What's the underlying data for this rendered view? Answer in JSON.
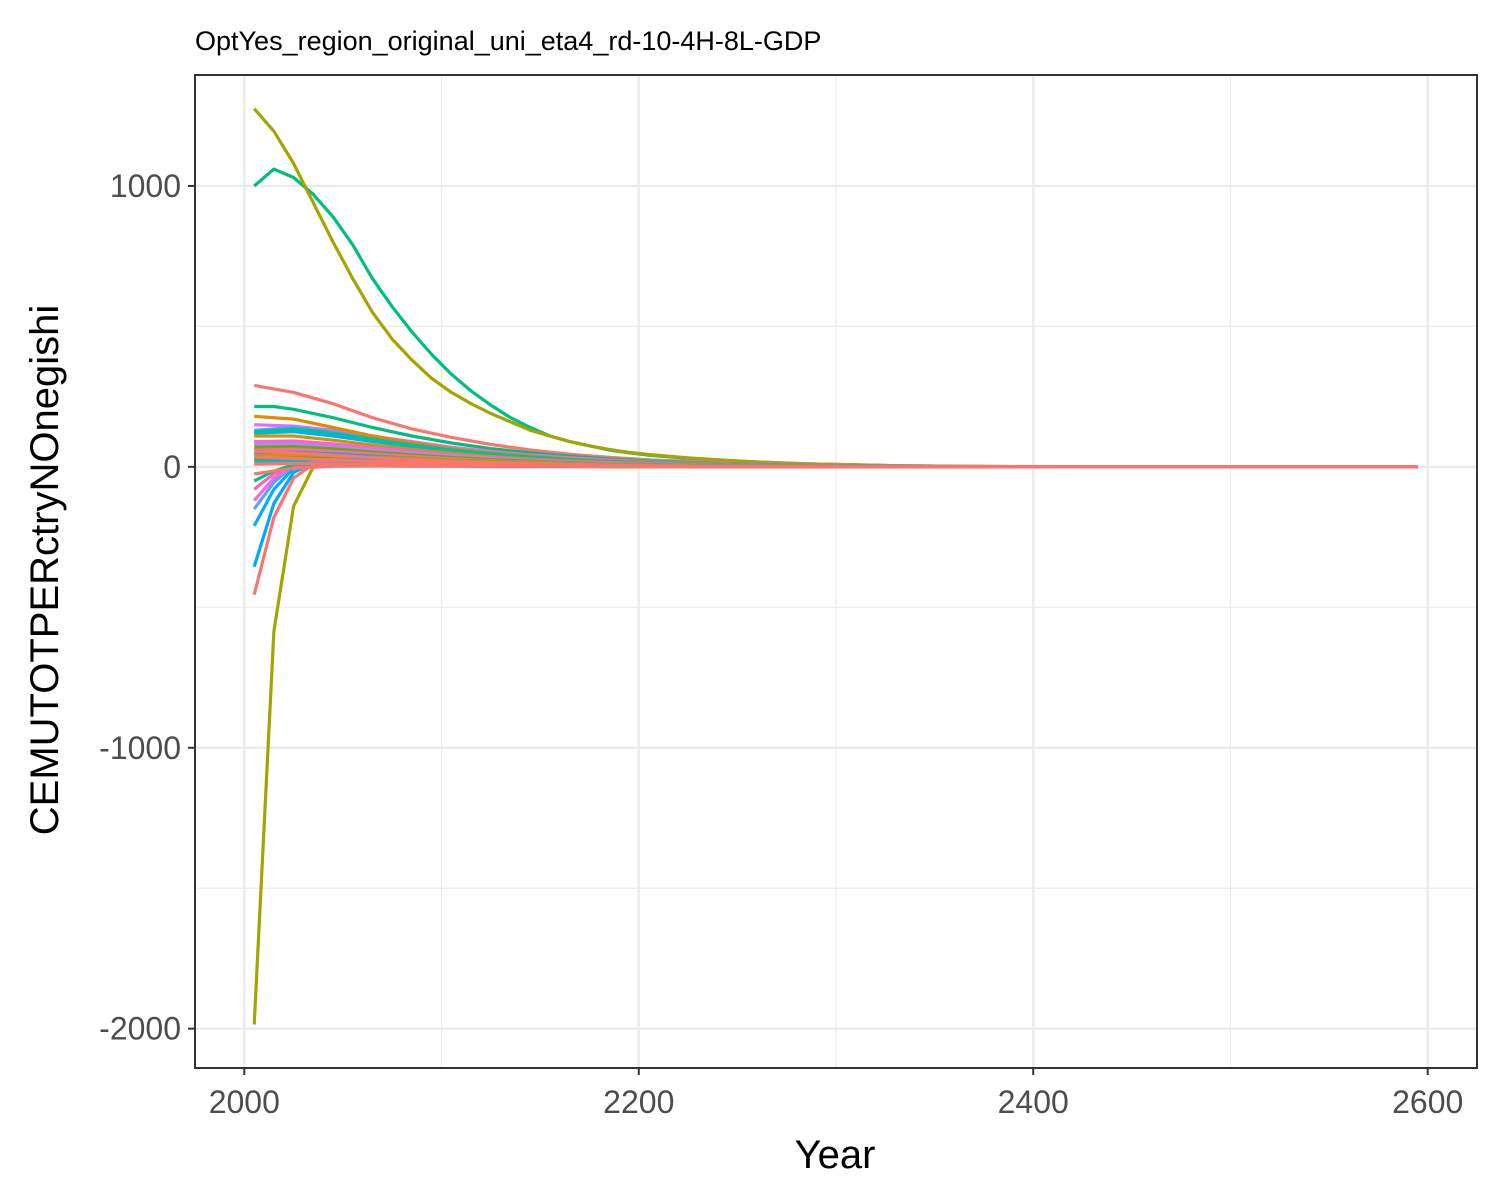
{
  "chart_data": {
    "type": "line",
    "title": "OptYes_region_original_uni_eta4_rd-10-4H-8L-GDP",
    "xlabel": "Year",
    "ylabel": "CEMUTOTPERctryNOnegishi",
    "xlim": [
      1975,
      2625
    ],
    "ylim": [
      -2140,
      1395
    ],
    "x_ticks": [
      2000,
      2200,
      2400,
      2600
    ],
    "x_tick_labels": [
      "2000",
      "2200",
      "2400",
      "2600"
    ],
    "x_minor_ticks": [
      2100,
      2300,
      2500
    ],
    "y_ticks": [
      -2000,
      -1000,
      0,
      1000
    ],
    "y_tick_labels": [
      "-2000",
      "-1000",
      "0",
      "1000"
    ],
    "y_minor_ticks": [
      -1500,
      -500,
      500
    ],
    "grid": true,
    "legend": "none",
    "series": [
      {
        "color": "#00BF7D",
        "x": [
          2005,
          2015,
          2025,
          2035,
          2045,
          2055,
          2065,
          2075,
          2085,
          2095,
          2105,
          2115,
          2125,
          2135,
          2145,
          2155,
          2165,
          2175,
          2185,
          2195,
          2205,
          2225,
          2245,
          2265,
          2285,
          2305,
          2325,
          2345,
          2365,
          2385,
          2415
        ],
        "values": [
          1000,
          1060,
          1030,
          970,
          890,
          790,
          670,
          570,
          480,
          400,
          330,
          270,
          220,
          175,
          140,
          110,
          90,
          75,
          60,
          50,
          42,
          30,
          22,
          16,
          11,
          8,
          5,
          3,
          2,
          1,
          0
        ]
      },
      {
        "color": "#A3A500",
        "x": [
          2005,
          2015,
          2025,
          2035,
          2045,
          2055,
          2065,
          2075,
          2085,
          2095,
          2105,
          2115,
          2125,
          2135,
          2145,
          2155,
          2165,
          2175,
          2185,
          2195,
          2205,
          2225,
          2245,
          2265,
          2285,
          2305,
          2325,
          2345,
          2365,
          2385,
          2415
        ],
        "values": [
          1275,
          1195,
          1080,
          940,
          800,
          670,
          550,
          455,
          380,
          315,
          265,
          225,
          190,
          160,
          130,
          110,
          90,
          75,
          62,
          52,
          44,
          32,
          23,
          16,
          11,
          8,
          5,
          3,
          2,
          1,
          0
        ]
      },
      {
        "color": "#F8766D",
        "x": [
          2005,
          2025,
          2045,
          2065,
          2085,
          2105,
          2125,
          2145,
          2165,
          2185,
          2205,
          2245,
          2285,
          2325,
          2365,
          2405,
          2445,
          2485,
          2525,
          2565,
          2595
        ],
        "values": [
          290,
          265,
          225,
          175,
          135,
          105,
          80,
          60,
          45,
          34,
          25,
          14,
          8,
          4,
          2,
          1,
          0,
          0,
          0,
          0,
          0
        ]
      },
      {
        "color": "#00BF7D",
        "x": [
          2005,
          2015,
          2025,
          2045,
          2065,
          2085,
          2105,
          2125,
          2145,
          2165,
          2185,
          2205,
          2245,
          2285,
          2325,
          2365,
          2415
        ],
        "values": [
          215,
          215,
          205,
          175,
          140,
          110,
          85,
          65,
          50,
          38,
          28,
          21,
          11,
          6,
          3,
          1,
          0
        ]
      },
      {
        "color": "#E76BF3",
        "x": [
          2005,
          2025,
          2045,
          2065,
          2085,
          2105,
          2125,
          2145,
          2165,
          2185,
          2205,
          2245,
          2285,
          2325,
          2415
        ],
        "values": [
          150,
          145,
          130,
          110,
          90,
          70,
          55,
          42,
          32,
          24,
          18,
          9,
          4,
          2,
          0
        ]
      },
      {
        "color": "#619CFF",
        "x": [
          2005,
          2025,
          2045,
          2065,
          2085,
          2105,
          2125,
          2145,
          2165,
          2185,
          2205,
          2245,
          2285,
          2325,
          2415
        ],
        "values": [
          130,
          140,
          125,
          100,
          80,
          62,
          48,
          36,
          27,
          20,
          15,
          8,
          4,
          2,
          0
        ]
      },
      {
        "color": "#00B0F6",
        "x": [
          2005,
          2025,
          2045,
          2065,
          2085,
          2105,
          2125,
          2145,
          2165,
          2185,
          2205,
          2245,
          2285,
          2325,
          2415
        ],
        "values": [
          120,
          125,
          110,
          90,
          72,
          56,
          43,
          33,
          25,
          18,
          13,
          7,
          3,
          1,
          0
        ]
      },
      {
        "color": "#E58700",
        "x": [
          2005,
          2025,
          2045,
          2065,
          2085,
          2105,
          2125,
          2145,
          2165,
          2185,
          2205,
          2245,
          2285,
          2325,
          2415
        ],
        "values": [
          180,
          170,
          140,
          110,
          85,
          65,
          50,
          38,
          28,
          21,
          15,
          8,
          4,
          2,
          0
        ]
      },
      {
        "color": "#00C19A",
        "x": [
          2005,
          2025,
          2045,
          2065,
          2085,
          2105,
          2125,
          2145,
          2165,
          2185,
          2205,
          2245,
          2285,
          2325,
          2415
        ],
        "values": [
          125,
          135,
          120,
          98,
          78,
          60,
          46,
          35,
          26,
          19,
          14,
          7,
          3,
          1,
          0
        ]
      },
      {
        "color": "#C99800",
        "x": [
          2005,
          2025,
          2045,
          2065,
          2085,
          2105,
          2125,
          2145,
          2165,
          2185,
          2205,
          2245,
          2285,
          2325,
          2415
        ],
        "values": [
          110,
          110,
          95,
          78,
          62,
          48,
          37,
          28,
          21,
          16,
          12,
          6,
          3,
          1,
          0
        ]
      },
      {
        "color": "#FD61D1",
        "x": [
          2005,
          2025,
          2045,
          2065,
          2085,
          2105,
          2125,
          2145,
          2165,
          2185,
          2205,
          2245,
          2285,
          2325,
          2415
        ],
        "values": [
          90,
          92,
          82,
          68,
          55,
          43,
          33,
          25,
          19,
          14,
          10,
          5,
          2,
          1,
          0
        ]
      },
      {
        "color": "#B983FF",
        "x": [
          2005,
          2025,
          2045,
          2065,
          2085,
          2105,
          2125,
          2145,
          2165,
          2185,
          2205,
          2245,
          2285,
          2325,
          2415
        ],
        "values": [
          80,
          82,
          72,
          60,
          48,
          38,
          29,
          22,
          16,
          12,
          9,
          4,
          2,
          1,
          0
        ]
      },
      {
        "color": "#5BB300",
        "x": [
          2005,
          2025,
          2045,
          2065,
          2085,
          2105,
          2125,
          2145,
          2165,
          2185,
          2205,
          2245,
          2285,
          2325,
          2415
        ],
        "values": [
          70,
          72,
          64,
          53,
          43,
          34,
          26,
          20,
          15,
          11,
          8,
          4,
          2,
          1,
          0
        ]
      },
      {
        "color": "#FF6A98",
        "x": [
          2005,
          2025,
          2045,
          2065,
          2085,
          2105,
          2125,
          2145,
          2165,
          2185,
          2205,
          2245,
          2285,
          2325,
          2415
        ],
        "values": [
          60,
          62,
          55,
          46,
          37,
          29,
          22,
          17,
          13,
          10,
          7,
          3,
          2,
          1,
          0
        ]
      },
      {
        "color": "#00A9FF",
        "x": [
          2005,
          2025,
          2045,
          2065,
          2085,
          2105,
          2125,
          2145,
          2165,
          2185,
          2205,
          2245,
          2285,
          2325,
          2415
        ],
        "values": [
          50,
          52,
          46,
          38,
          31,
          24,
          19,
          14,
          11,
          8,
          6,
          3,
          1,
          0,
          0
        ]
      },
      {
        "color": "#D89000",
        "x": [
          2005,
          2025,
          2045,
          2065,
          2085,
          2105,
          2125,
          2145,
          2165,
          2185,
          2205,
          2245,
          2285,
          2325,
          2415
        ],
        "values": [
          40,
          42,
          37,
          31,
          25,
          20,
          15,
          12,
          9,
          7,
          5,
          2,
          1,
          0,
          0
        ]
      },
      {
        "color": "#39B600",
        "x": [
          2005,
          2025,
          2045,
          2065,
          2085,
          2105,
          2125,
          2145,
          2165,
          2185,
          2205,
          2245,
          2285,
          2325,
          2415
        ],
        "values": [
          30,
          32,
          28,
          23,
          19,
          15,
          11,
          9,
          7,
          5,
          4,
          2,
          1,
          0,
          0
        ]
      },
      {
        "color": "#00BFC4",
        "x": [
          2005,
          2025,
          2045,
          2065,
          2085,
          2105,
          2125,
          2145,
          2165,
          2185,
          2205,
          2245,
          2285,
          2325,
          2415
        ],
        "values": [
          20,
          22,
          19,
          16,
          13,
          10,
          8,
          6,
          5,
          3,
          2,
          1,
          1,
          0,
          0
        ]
      },
      {
        "color": "#A3A500",
        "x": [
          2005,
          2015,
          2025,
          2035,
          2045,
          2065,
          2085,
          2105,
          2125,
          2145,
          2165,
          2185,
          2205,
          2245,
          2285,
          2325,
          2415
        ],
        "values": [
          -1985,
          -585,
          -140,
          0,
          30,
          35,
          30,
          24,
          19,
          14,
          10,
          7,
          5,
          2,
          1,
          0,
          0
        ]
      },
      {
        "color": "#F8766D",
        "x": [
          2005,
          2015,
          2025,
          2035,
          2045,
          2065,
          2085,
          2105,
          2125,
          2145,
          2165,
          2185,
          2205,
          2245,
          2285,
          2325,
          2415
        ],
        "values": [
          -455,
          -180,
          -40,
          10,
          25,
          25,
          20,
          16,
          12,
          9,
          7,
          5,
          3,
          1,
          1,
          0,
          0
        ]
      },
      {
        "color": "#00A9FF",
        "x": [
          2005,
          2015,
          2025,
          2035,
          2045,
          2065,
          2085,
          2105,
          2125,
          2145,
          2165,
          2185,
          2205,
          2245,
          2285,
          2325,
          2415
        ],
        "values": [
          -355,
          -130,
          -20,
          15,
          25,
          24,
          19,
          15,
          11,
          8,
          6,
          4,
          3,
          1,
          0,
          0,
          0
        ]
      },
      {
        "color": "#00B0F6",
        "x": [
          2005,
          2015,
          2025,
          2035,
          2045,
          2065,
          2085,
          2105,
          2125,
          2145,
          2165,
          2185,
          2205,
          2245,
          2285,
          2325,
          2415
        ],
        "values": [
          -210,
          -80,
          -5,
          15,
          20,
          20,
          16,
          12,
          9,
          7,
          5,
          3,
          2,
          1,
          0,
          0,
          0
        ]
      },
      {
        "color": "#619CFF",
        "x": [
          2005,
          2015,
          2025,
          2035,
          2045,
          2065,
          2085,
          2105,
          2125,
          2145,
          2165,
          2185,
          2205,
          2245,
          2285,
          2325,
          2415
        ],
        "values": [
          -150,
          -55,
          5,
          15,
          18,
          17,
          14,
          11,
          8,
          6,
          4,
          3,
          2,
          1,
          0,
          0,
          0
        ]
      },
      {
        "color": "#E76BF3",
        "x": [
          2005,
          2015,
          2025,
          2035,
          2045,
          2065,
          2085,
          2105,
          2125,
          2145,
          2165,
          2185,
          2205,
          2245,
          2285,
          2325,
          2415
        ],
        "values": [
          -120,
          -40,
          5,
          14,
          16,
          15,
          12,
          9,
          7,
          5,
          4,
          3,
          2,
          1,
          0,
          0,
          0
        ]
      },
      {
        "color": "#FF64B0",
        "x": [
          2005,
          2015,
          2025,
          2035,
          2045,
          2065,
          2085,
          2105,
          2125,
          2145,
          2165,
          2185,
          2205,
          2245,
          2285,
          2325,
          2415
        ],
        "values": [
          -80,
          -25,
          8,
          13,
          14,
          13,
          10,
          8,
          6,
          4,
          3,
          2,
          1,
          0,
          0,
          0,
          0
        ]
      },
      {
        "color": "#00C08B",
        "x": [
          2005,
          2015,
          2025,
          2035,
          2045,
          2065,
          2085,
          2105,
          2125,
          2145,
          2165,
          2185,
          2205,
          2245,
          2285,
          2325,
          2415
        ],
        "values": [
          -50,
          -15,
          8,
          12,
          12,
          11,
          9,
          7,
          5,
          4,
          3,
          2,
          1,
          0,
          0,
          0,
          0
        ]
      },
      {
        "color": "#F8766D",
        "x": [
          2005,
          2025,
          2045,
          2065,
          2085,
          2105,
          2125,
          2145,
          2165,
          2185,
          2205,
          2245,
          2285,
          2325,
          2365,
          2405,
          2445,
          2485,
          2525,
          2565,
          2595
        ],
        "values": [
          35,
          30,
          25,
          20,
          16,
          12,
          9,
          7,
          5,
          4,
          3,
          1,
          1,
          0,
          0,
          0,
          0,
          0,
          0,
          0,
          0
        ]
      },
      {
        "color": "#F8766D",
        "x": [
          2005,
          2025,
          2045,
          2065,
          2085,
          2105,
          2125,
          2145,
          2165,
          2185,
          2205,
          2245,
          2285,
          2325,
          2365,
          2405,
          2445,
          2485,
          2525,
          2565,
          2595
        ],
        "values": [
          10,
          12,
          11,
          9,
          7,
          6,
          4,
          3,
          2,
          2,
          1,
          1,
          0,
          0,
          0,
          0,
          0,
          0,
          0,
          0,
          0
        ]
      },
      {
        "color": "#F8766D",
        "x": [
          2005,
          2025,
          2045,
          2065,
          2085,
          2105,
          2125,
          2145,
          2165,
          2185,
          2205,
          2245,
          2285,
          2325,
          2365,
          2405,
          2445,
          2485,
          2525,
          2565,
          2595
        ],
        "values": [
          -25,
          -5,
          2,
          3,
          2,
          2,
          1,
          1,
          1,
          0,
          0,
          0,
          0,
          0,
          0,
          0,
          0,
          0,
          0,
          0,
          0
        ]
      },
      {
        "color": "#F8766D",
        "x": [
          2005,
          2025,
          2045,
          2065,
          2085,
          2105,
          2125,
          2145,
          2165,
          2185,
          2205,
          2245,
          2285,
          2325,
          2365,
          2405,
          2445,
          2485,
          2525,
          2565,
          2595
        ],
        "values": [
          55,
          50,
          42,
          33,
          26,
          20,
          15,
          11,
          8,
          6,
          4,
          2,
          1,
          0,
          0,
          0,
          0,
          0,
          0,
          0,
          0
        ]
      }
    ]
  }
}
